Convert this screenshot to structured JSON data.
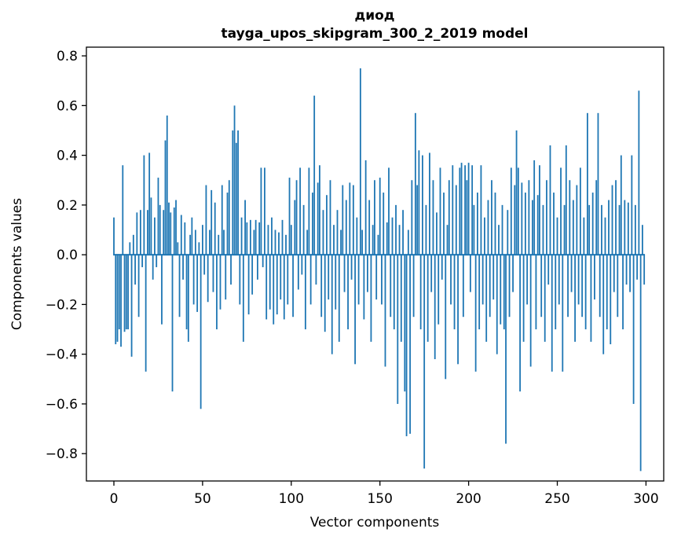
{
  "chart_data": {
    "type": "bar",
    "title": "диод",
    "subtitle": "tayga_upos_skipgram_300_2_2019 model",
    "xlabel": "Vector components",
    "ylabel": "Components values",
    "bar_color": "#1f77b4",
    "background_color": "#ffffff",
    "xlim": [
      -15.5,
      310
    ],
    "ylim": [
      -0.91,
      0.835
    ],
    "grid": false,
    "legend": "none",
    "xticks": [
      {
        "v": 0,
        "label": "0"
      },
      {
        "v": 50,
        "label": "50"
      },
      {
        "v": 100,
        "label": "100"
      },
      {
        "v": 150,
        "label": "150"
      },
      {
        "v": 200,
        "label": "200"
      },
      {
        "v": 250,
        "label": "250"
      },
      {
        "v": 300,
        "label": "300"
      }
    ],
    "yticks": [
      {
        "v": 0.8,
        "label": "0.8"
      },
      {
        "v": 0.6,
        "label": "0.6"
      },
      {
        "v": 0.4,
        "label": "0.4"
      },
      {
        "v": 0.2,
        "label": "0.2"
      },
      {
        "v": 0.0,
        "label": "0.0"
      },
      {
        "v": -0.2,
        "label": "−0.2"
      },
      {
        "v": -0.4,
        "label": "−0.4"
      },
      {
        "v": -0.6,
        "label": "−0.6"
      },
      {
        "v": -0.8,
        "label": "−0.8"
      }
    ],
    "values": [
      0.15,
      -0.36,
      -0.35,
      -0.3,
      -0.37,
      0.36,
      -0.31,
      -0.3,
      -0.3,
      0.05,
      -0.41,
      0.08,
      -0.12,
      0.17,
      -0.25,
      0.18,
      -0.05,
      0.4,
      -0.47,
      0.18,
      0.41,
      0.23,
      -0.1,
      0.15,
      -0.05,
      0.31,
      0.2,
      -0.28,
      0.18,
      0.46,
      0.56,
      0.21,
      0.17,
      -0.55,
      0.19,
      0.22,
      0.05,
      -0.25,
      0.16,
      -0.1,
      0.13,
      -0.3,
      -0.35,
      0.08,
      0.15,
      -0.2,
      0.1,
      -0.23,
      0.05,
      -0.62,
      0.12,
      -0.08,
      0.28,
      -0.19,
      0.1,
      0.26,
      -0.15,
      0.21,
      -0.3,
      0.08,
      -0.22,
      0.28,
      0.1,
      -0.18,
      0.25,
      0.3,
      -0.12,
      0.5,
      0.6,
      0.45,
      0.5,
      -0.2,
      0.15,
      -0.35,
      0.22,
      0.13,
      -0.24,
      0.14,
      -0.16,
      0.1,
      0.14,
      -0.1,
      0.13,
      0.35,
      -0.05,
      0.35,
      -0.26,
      0.12,
      -0.22,
      0.15,
      -0.28,
      0.1,
      -0.24,
      0.09,
      -0.18,
      0.14,
      -0.26,
      0.08,
      -0.2,
      0.31,
      0.12,
      -0.25,
      0.22,
      0.3,
      -0.14,
      0.35,
      -0.08,
      0.2,
      -0.3,
      0.1,
      0.35,
      -0.2,
      0.25,
      0.64,
      -0.12,
      0.29,
      0.36,
      -0.25,
      0.18,
      -0.31,
      0.24,
      -0.18,
      0.3,
      -0.4,
      0.12,
      -0.22,
      0.18,
      -0.35,
      0.1,
      0.28,
      -0.15,
      0.22,
      -0.3,
      0.29,
      -0.1,
      0.28,
      -0.44,
      0.15,
      -0.2,
      0.75,
      0.1,
      -0.26,
      0.38,
      -0.15,
      0.22,
      -0.35,
      0.12,
      0.3,
      -0.18,
      0.08,
      0.31,
      -0.2,
      0.25,
      -0.45,
      0.13,
      0.35,
      -0.25,
      0.15,
      -0.3,
      0.2,
      -0.6,
      0.12,
      -0.35,
      0.18,
      -0.55,
      -0.73,
      0.1,
      -0.72,
      0.3,
      -0.25,
      0.57,
      0.28,
      0.42,
      -0.3,
      0.4,
      -0.86,
      0.2,
      -0.35,
      0.41,
      -0.15,
      0.3,
      -0.42,
      0.17,
      -0.28,
      0.35,
      -0.1,
      0.25,
      -0.5,
      0.12,
      0.3,
      -0.2,
      0.36,
      -0.3,
      0.28,
      -0.44,
      0.35,
      0.37,
      -0.25,
      0.36,
      0.3,
      0.37,
      -0.15,
      0.36,
      0.2,
      -0.47,
      0.25,
      -0.3,
      0.36,
      -0.2,
      0.15,
      -0.35,
      0.22,
      -0.25,
      0.3,
      -0.18,
      0.25,
      -0.4,
      0.12,
      -0.28,
      0.2,
      -0.3,
      -0.76,
      0.18,
      -0.25,
      0.35,
      -0.15,
      0.28,
      0.5,
      0.35,
      -0.55,
      0.29,
      -0.35,
      0.25,
      -0.2,
      0.3,
      -0.45,
      0.22,
      0.38,
      -0.3,
      0.24,
      0.36,
      -0.25,
      0.2,
      -0.35,
      0.3,
      -0.12,
      0.44,
      -0.47,
      0.25,
      -0.3,
      0.15,
      -0.2,
      0.35,
      -0.47,
      0.2,
      0.44,
      -0.25,
      0.3,
      -0.15,
      0.22,
      -0.35,
      0.28,
      -0.2,
      0.35,
      -0.25,
      0.15,
      -0.3,
      0.57,
      0.2,
      -0.35,
      0.25,
      -0.18,
      0.3,
      0.57,
      -0.25,
      0.2,
      -0.4,
      0.15,
      -0.3,
      0.22,
      -0.36,
      0.28,
      -0.15,
      0.3,
      -0.25,
      0.2,
      0.4,
      -0.3,
      0.22,
      -0.12,
      0.21,
      -0.15,
      0.4,
      -0.6,
      0.2,
      -0.1,
      0.66,
      -0.87,
      0.12,
      -0.12
    ]
  }
}
